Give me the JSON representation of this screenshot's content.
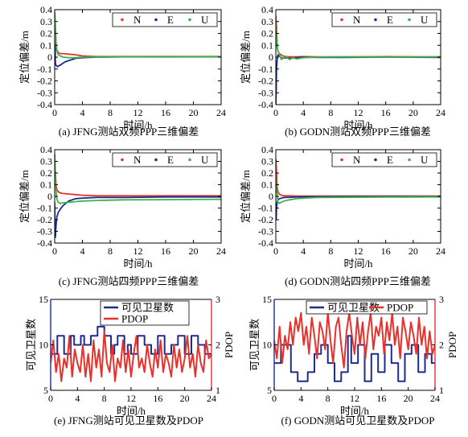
{
  "chart_data": [
    {
      "panel": "a",
      "type": "line",
      "title": "(a) JFNG测站双频PPP三维偏差",
      "xlabel": "时间/h",
      "ylabel": "定位偏差/m",
      "xlim": [
        0,
        24
      ],
      "ylim": [
        -0.4,
        0.4
      ],
      "xticks": [
        0,
        4,
        8,
        12,
        16,
        20,
        24
      ],
      "yticks": [
        -0.4,
        -0.3,
        -0.2,
        -0.1,
        0,
        0.1,
        0.2,
        0.3,
        0.4
      ],
      "legend": "top-right",
      "grid": false,
      "series": [
        {
          "name": "N",
          "color": "#e8312b",
          "x": [
            0,
            0.1,
            0.2,
            0.3,
            0.5,
            0.8,
            1.2,
            2,
            3,
            4,
            6,
            10,
            16,
            24
          ],
          "values": [
            0.38,
            0.25,
            0.12,
            0.06,
            0.04,
            0.03,
            0.03,
            0.025,
            0.02,
            0.01,
            0.005,
            0.005,
            0.005,
            0.005
          ]
        },
        {
          "name": "E",
          "color": "#1f2c8f",
          "x": [
            0,
            0.1,
            0.2,
            0.4,
            0.7,
            1,
            1.5,
            2,
            2.5,
            3,
            4,
            6,
            10,
            16,
            24
          ],
          "values": [
            0.35,
            -0.05,
            -0.07,
            -0.08,
            -0.07,
            -0.06,
            -0.04,
            -0.03,
            -0.02,
            -0.01,
            -0.005,
            0,
            0.003,
            0.002,
            0.003
          ]
        },
        {
          "name": "U",
          "color": "#3bb44a",
          "x": [
            0,
            0.05,
            0.1,
            0.2,
            0.35,
            0.5,
            0.8,
            1.2,
            2,
            3,
            4,
            6,
            10,
            16,
            24
          ],
          "values": [
            0.38,
            0.33,
            0.2,
            0.1,
            0.05,
            0.02,
            0.01,
            0,
            -0.005,
            -0.005,
            0,
            0.003,
            0.002,
            0.003,
            0.002
          ]
        }
      ]
    },
    {
      "panel": "b",
      "type": "line",
      "title": "(b) GODN测站双频PPP三维偏差",
      "xlabel": "时间/h",
      "ylabel": "定位偏差/m",
      "xlim": [
        0,
        24
      ],
      "ylim": [
        -0.4,
        0.4
      ],
      "xticks": [
        0,
        4,
        8,
        12,
        16,
        20,
        24
      ],
      "yticks": [
        -0.4,
        -0.3,
        -0.2,
        -0.1,
        0,
        0.1,
        0.2,
        0.3,
        0.4
      ],
      "legend": "top-right",
      "grid": false,
      "series": [
        {
          "name": "N",
          "color": "#e8312b",
          "x": [
            0,
            0.1,
            0.2,
            0.3,
            0.5,
            0.8,
            1,
            1.5,
            2,
            3,
            4,
            6,
            10,
            16,
            24
          ],
          "values": [
            0.35,
            0.25,
            0.1,
            0.05,
            0.03,
            0.02,
            0.01,
            0.005,
            0.003,
            0.002,
            0.005,
            0.003,
            0.002,
            0.004,
            0.003
          ]
        },
        {
          "name": "E",
          "color": "#1f2c8f",
          "x": [
            0,
            0.05,
            0.1,
            0.2,
            0.3,
            0.5,
            0.8,
            1,
            1.5,
            2,
            3,
            4,
            6,
            10,
            16,
            24
          ],
          "values": [
            -0.4,
            -0.3,
            -0.1,
            -0.02,
            0.02,
            0.01,
            -0.005,
            -0.01,
            -0.005,
            -0.01,
            -0.005,
            0,
            -0.003,
            -0.002,
            0,
            -0.002
          ]
        },
        {
          "name": "U",
          "color": "#3bb44a",
          "x": [
            0,
            0.05,
            0.1,
            0.2,
            0.3,
            0.5,
            0.8,
            1,
            1.5,
            2,
            2.5,
            3,
            4,
            6,
            10,
            16,
            24
          ],
          "values": [
            0.33,
            0.25,
            0.15,
            0.08,
            0.05,
            0.03,
            -0.02,
            -0.01,
            0.005,
            -0.02,
            -0.005,
            -0.015,
            -0.005,
            0,
            0.002,
            0,
            0.002
          ]
        }
      ]
    },
    {
      "panel": "c",
      "type": "line",
      "title": "(c) JFNG测站四频PPP三维偏差",
      "xlabel": "时间/h",
      "ylabel": "定位偏差/m",
      "xlim": [
        0,
        24
      ],
      "ylim": [
        -0.4,
        0.4
      ],
      "xticks": [
        0,
        4,
        8,
        12,
        16,
        20,
        24
      ],
      "yticks": [
        -0.4,
        -0.3,
        -0.2,
        -0.1,
        0,
        0.1,
        0.2,
        0.3,
        0.4
      ],
      "legend": "top-right",
      "grid": false,
      "series": [
        {
          "name": "N",
          "color": "#e8312b",
          "x": [
            0,
            0.1,
            0.2,
            0.3,
            0.5,
            0.8,
            1.2,
            2,
            3,
            4,
            6,
            10,
            16,
            24
          ],
          "values": [
            0.3,
            0.2,
            0.1,
            0.06,
            0.04,
            0.03,
            0.025,
            0.02,
            0.015,
            0.01,
            0.005,
            0.005,
            0.005,
            0.005
          ]
        },
        {
          "name": "E",
          "color": "#1f2c8f",
          "x": [
            0,
            0.05,
            0.1,
            0.2,
            0.3,
            0.5,
            0.8,
            1.2,
            1.6,
            2,
            3,
            4,
            6,
            10,
            16,
            24
          ],
          "values": [
            -0.05,
            -0.3,
            -0.35,
            -0.25,
            -0.18,
            -0.14,
            -0.11,
            -0.08,
            -0.06,
            -0.04,
            -0.02,
            -0.015,
            -0.01,
            -0.01,
            -0.005,
            -0.005
          ]
        },
        {
          "name": "U",
          "color": "#3bb44a",
          "x": [
            0,
            0.05,
            0.1,
            0.2,
            0.3,
            0.5,
            0.8,
            1.2,
            2,
            3,
            4,
            6,
            10,
            16,
            24
          ],
          "values": [
            0.36,
            0.3,
            0.15,
            0.05,
            -0.02,
            -0.05,
            -0.06,
            -0.055,
            -0.05,
            -0.045,
            -0.04,
            -0.035,
            -0.03,
            -0.028,
            -0.025
          ]
        }
      ]
    },
    {
      "panel": "d",
      "type": "line",
      "title": "(d) GODN测站四频PPP三维偏差",
      "xlabel": "时间/h",
      "ylabel": "定位偏差/m",
      "xlim": [
        0,
        24
      ],
      "ylim": [
        -0.4,
        0.4
      ],
      "xticks": [
        0,
        4,
        8,
        12,
        16,
        20,
        24
      ],
      "yticks": [
        -0.4,
        -0.3,
        -0.2,
        -0.1,
        0,
        0.1,
        0.2,
        0.3,
        0.4
      ],
      "legend": "top-right",
      "grid": false,
      "series": [
        {
          "name": "N",
          "color": "#e8312b",
          "x": [
            0,
            0.1,
            0.2,
            0.3,
            0.5,
            0.8,
            1.2,
            2,
            3,
            4,
            6,
            10,
            16,
            24
          ],
          "values": [
            0.32,
            0.2,
            0.08,
            0.04,
            0.02,
            0.01,
            0.005,
            0.005,
            0.003,
            0.002,
            0.002,
            0.002,
            0.002,
            0.002
          ]
        },
        {
          "name": "E",
          "color": "#1f2c8f",
          "x": [
            0,
            0.05,
            0.1,
            0.2,
            0.3,
            0.5,
            0.8,
            1.2,
            2,
            3,
            4,
            6,
            10,
            16,
            24
          ],
          "values": [
            -0.18,
            -0.2,
            -0.1,
            -0.05,
            -0.03,
            -0.02,
            -0.015,
            -0.01,
            -0.008,
            -0.005,
            -0.005,
            -0.003,
            -0.002,
            -0.002,
            -0.002
          ]
        },
        {
          "name": "U",
          "color": "#3bb44a",
          "x": [
            0,
            0.05,
            0.1,
            0.2,
            0.3,
            0.5,
            0.8,
            1.2,
            2,
            3,
            4,
            6,
            10,
            16,
            24
          ],
          "values": [
            0.2,
            0.15,
            0.05,
            0.02,
            -0.05,
            -0.06,
            -0.05,
            -0.04,
            -0.03,
            -0.02,
            -0.015,
            -0.01,
            -0.008,
            -0.006,
            -0.005
          ]
        }
      ]
    },
    {
      "panel": "e",
      "type": "line",
      "title": "(e) JFNG测站可见卫星数及PDOP",
      "xlabel": "时间/h",
      "ylabel": "可见卫星数",
      "ylabel_right": "PDOP",
      "xlim": [
        0,
        24
      ],
      "ylim": [
        5,
        15
      ],
      "ylim_right": [
        1,
        3
      ],
      "xticks": [
        0,
        4,
        8,
        12,
        16,
        20,
        24
      ],
      "yticks": [
        5,
        10,
        15
      ],
      "yticks_right": [
        1,
        2,
        3
      ],
      "legend": "top-center",
      "grid": false,
      "series": [
        {
          "name": "可见卫星数",
          "axis": "left",
          "color": "#1f2c8f",
          "x": [
            0,
            1,
            1,
            2,
            2,
            3,
            3,
            3.5,
            3.5,
            4.5,
            4.5,
            5,
            5,
            6,
            6,
            7,
            7,
            8,
            8,
            9,
            9,
            9.5,
            9.5,
            10,
            10,
            11,
            11,
            11.5,
            11.5,
            12,
            12,
            13,
            13,
            14,
            14,
            15,
            15,
            16,
            16,
            17,
            17,
            18,
            18,
            19,
            19,
            20,
            20,
            21,
            21,
            22,
            22,
            23,
            23,
            24
          ],
          "values": [
            9,
            9,
            11,
            11,
            9,
            9,
            11,
            11,
            10,
            10,
            11,
            11,
            10,
            10,
            11,
            11,
            12,
            12,
            11,
            11,
            9,
            9,
            10,
            10,
            11,
            11,
            9,
            9,
            10,
            10,
            9,
            9,
            11,
            11,
            10,
            10,
            9,
            9,
            11,
            11,
            9,
            9,
            10,
            10,
            11,
            11,
            9,
            9,
            11,
            11,
            10,
            10,
            9,
            9
          ]
        },
        {
          "name": "PDOP",
          "axis": "right",
          "color": "#e8312b",
          "x": [
            0,
            0.4,
            0.8,
            1.2,
            1.6,
            2,
            2.4,
            2.8,
            3.2,
            3.6,
            4,
            4.4,
            4.8,
            5.2,
            5.6,
            6,
            6.4,
            6.8,
            7.2,
            7.6,
            8,
            8.4,
            8.8,
            9.2,
            9.6,
            10,
            10.4,
            10.8,
            11.2,
            11.6,
            12,
            12.4,
            12.8,
            13.2,
            13.6,
            14,
            14.4,
            14.8,
            15.2,
            15.6,
            16,
            16.4,
            16.8,
            17.2,
            17.6,
            18,
            18.4,
            18.8,
            19.2,
            19.6,
            20,
            20.4,
            20.8,
            21.2,
            21.6,
            22,
            22.4,
            22.8,
            23.2,
            23.6,
            24
          ],
          "values": [
            1.6,
            2.1,
            1.4,
            1.8,
            1.2,
            1.7,
            1.5,
            2.2,
            1.3,
            1.9,
            1.6,
            1.4,
            2.0,
            1.3,
            1.8,
            1.2,
            2.1,
            1.5,
            1.9,
            1.3,
            2.3,
            1.6,
            1.4,
            2.0,
            1.2,
            1.7,
            1.5,
            2.1,
            1.4,
            1.9,
            1.3,
            1.8,
            2.2,
            1.5,
            1.7,
            1.4,
            2.0,
            1.6,
            1.3,
            1.9,
            1.5,
            2.1,
            1.4,
            1.8,
            1.6,
            1.3,
            2.0,
            1.5,
            1.9,
            1.4,
            1.7,
            2.2,
            1.5,
            1.8,
            1.3,
            2.0,
            1.6,
            1.4,
            2.1,
            1.7,
            1.8
          ]
        }
      ]
    },
    {
      "panel": "f",
      "type": "line",
      "title": "(f) GODN测站可见卫星数及PDOP",
      "xlabel": "时间/h",
      "ylabel": "可见卫星数",
      "ylabel_right": "PDOP",
      "xlim": [
        0,
        24
      ],
      "ylim": [
        5,
        15
      ],
      "ylim_right": [
        1,
        3
      ],
      "xticks": [
        0,
        4,
        8,
        12,
        16,
        20,
        24
      ],
      "yticks": [
        5,
        10,
        15
      ],
      "yticks_right": [
        1,
        2,
        3
      ],
      "legend": "top-center",
      "grid": false,
      "series": [
        {
          "name": "可见卫星数",
          "axis": "left",
          "color": "#1f2c8f",
          "x": [
            0,
            1,
            1,
            2.5,
            2.5,
            3.5,
            3.5,
            5,
            5,
            6,
            6,
            7,
            7,
            8,
            8,
            9,
            9,
            10,
            10,
            11,
            11,
            11.5,
            11.5,
            12.5,
            12.5,
            13.5,
            13.5,
            14.5,
            14.5,
            15.5,
            15.5,
            16.5,
            16.5,
            17.5,
            17.5,
            18.5,
            18.5,
            19.5,
            19.5,
            20.5,
            20.5,
            21.5,
            21.5,
            22.5,
            22.5,
            23.5,
            23.5,
            24
          ],
          "values": [
            8,
            8,
            10,
            10,
            7,
            7,
            6,
            6,
            7,
            7,
            9,
            9,
            10,
            10,
            8,
            8,
            6,
            6,
            7,
            7,
            11,
            11,
            8,
            8,
            10,
            10,
            6,
            6,
            9,
            9,
            7,
            7,
            10,
            10,
            8,
            8,
            6,
            6,
            9,
            9,
            10,
            10,
            7,
            7,
            9,
            9,
            8,
            8
          ]
        },
        {
          "name": "PDOP",
          "axis": "right",
          "color": "#e8312b",
          "x": [
            0,
            0.4,
            0.8,
            1.2,
            1.6,
            2,
            2.4,
            2.8,
            3.2,
            3.6,
            4,
            4.4,
            4.8,
            5.2,
            5.6,
            6,
            6.4,
            6.8,
            7.2,
            7.6,
            8,
            8.4,
            8.8,
            9.2,
            9.6,
            10,
            10.4,
            10.8,
            11.2,
            11.6,
            12,
            12.4,
            12.8,
            13.2,
            13.6,
            14,
            14.4,
            14.8,
            15.2,
            15.6,
            16,
            16.4,
            16.8,
            17.2,
            17.6,
            18,
            18.4,
            18.8,
            19.2,
            19.6,
            20,
            20.4,
            20.8,
            21.2,
            21.6,
            22,
            22.4,
            22.8,
            23.2,
            23.6,
            24
          ],
          "values": [
            2.1,
            1.7,
            2.4,
            1.6,
            2.2,
            1.9,
            2.5,
            2.0,
            2.6,
            2.3,
            2.7,
            2.0,
            2.4,
            1.8,
            2.6,
            2.2,
            1.7,
            2.5,
            2.3,
            1.9,
            2.7,
            2.1,
            1.6,
            2.4,
            2.6,
            2.0,
            1.5,
            2.3,
            2.7,
            2.2,
            1.8,
            2.6,
            2.0,
            2.5,
            1.7,
            2.3,
            2.7,
            1.9,
            2.4,
            2.2,
            2.6,
            1.8,
            2.5,
            2.1,
            2.7,
            2.0,
            2.4,
            1.7,
            2.6,
            2.3,
            1.9,
            2.5,
            2.2,
            1.8,
            2.6,
            2.0,
            2.4,
            1.7,
            2.3,
            1.8,
            2.0
          ]
        }
      ]
    }
  ]
}
